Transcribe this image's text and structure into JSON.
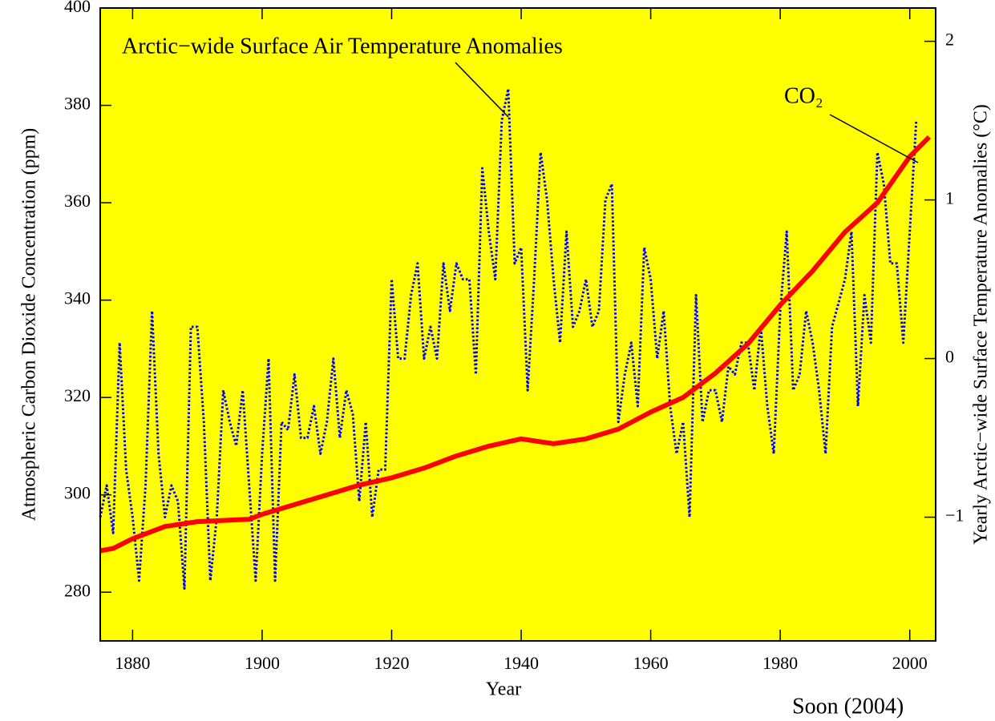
{
  "chart_data": {
    "type": "line",
    "x_label": "Year",
    "y_label": "Atmospheric Carbon Dioxide Concentration (ppm)",
    "y2_label": "Yearly Arctic−wide Surface Temperature Anomalies (°C)",
    "annotations": [
      "Arctic−wide Surface Air Temperature Anomalies",
      "CO₂",
      "Soon (2004)"
    ],
    "xlim": [
      1875,
      2004
    ],
    "xticks": [
      1880,
      1900,
      1920,
      1940,
      1960,
      1980,
      2000
    ],
    "ylim": [
      270,
      400
    ],
    "yticks": [
      280,
      300,
      320,
      340,
      360,
      380,
      400
    ],
    "y2lim": [
      -1.78,
      2.21
    ],
    "y2ticks": [
      {
        "value": -1,
        "label": "−1"
      },
      0,
      1,
      2
    ],
    "background": "#ffff00",
    "series": [
      {
        "name": "CO₂",
        "color": "#ff0000",
        "axis": "y",
        "x": [
          1875,
          1877,
          1880,
          1885,
          1890,
          1898,
          1900,
          1905,
          1910,
          1915,
          1920,
          1925,
          1930,
          1935,
          1940,
          1945,
          1950,
          1955,
          1960,
          1965,
          1970,
          1975,
          1980,
          1985,
          1990,
          1995,
          2000,
          2003
        ],
        "values": [
          288.5,
          289,
          291,
          293.5,
          294.5,
          295,
          296,
          298,
          300,
          302,
          303.5,
          305.5,
          308,
          310,
          311.5,
          310.5,
          311.5,
          313.5,
          317,
          320,
          325,
          331,
          339,
          346,
          354,
          360,
          369.5,
          373.5
        ]
      },
      {
        "name": "Arctic−wide Surface Air Temperature Anomalies",
        "color": "#0000ff",
        "axis": "y2",
        "x": [
          1875,
          1876,
          1877,
          1878,
          1879,
          1880,
          1881,
          1882,
          1883,
          1884,
          1885,
          1886,
          1887,
          1888,
          1889,
          1890,
          1891,
          1892,
          1893,
          1894,
          1895,
          1896,
          1897,
          1898,
          1899,
          1900,
          1901,
          1902,
          1903,
          1904,
          1905,
          1906,
          1907,
          1908,
          1909,
          1910,
          1911,
          1912,
          1913,
          1914,
          1915,
          1916,
          1917,
          1918,
          1919,
          1920,
          1921,
          1922,
          1923,
          1924,
          1925,
          1926,
          1927,
          1928,
          1929,
          1930,
          1931,
          1932,
          1933,
          1934,
          1935,
          1936,
          1937,
          1938,
          1939,
          1940,
          1941,
          1942,
          1943,
          1944,
          1945,
          1946,
          1947,
          1948,
          1949,
          1950,
          1951,
          1952,
          1953,
          1954,
          1955,
          1956,
          1957,
          1958,
          1959,
          1960,
          1961,
          1962,
          1963,
          1964,
          1965,
          1966,
          1967,
          1968,
          1969,
          1970,
          1971,
          1972,
          1973,
          1974,
          1975,
          1976,
          1977,
          1978,
          1979,
          1980,
          1981,
          1982,
          1983,
          1984,
          1985,
          1986,
          1987,
          1988,
          1989,
          1990,
          1991,
          1992,
          1993,
          1994,
          1995,
          1996,
          1997,
          1998,
          1999,
          2000,
          2001
        ],
        "values": [
          -1.0,
          -0.8,
          -1.1,
          0.1,
          -0.7,
          -1.0,
          -1.4,
          -0.8,
          0.3,
          -0.6,
          -1.0,
          -0.8,
          -0.9,
          -1.45,
          0.2,
          0.2,
          -0.4,
          -1.4,
          -1.0,
          -0.2,
          -0.4,
          -0.55,
          -0.2,
          -0.8,
          -1.4,
          -0.6,
          0.0,
          -1.4,
          -0.4,
          -0.45,
          -0.1,
          -0.5,
          -0.5,
          -0.3,
          -0.6,
          -0.4,
          0.0,
          -0.5,
          -0.2,
          -0.35,
          -0.9,
          -0.4,
          -1.0,
          -0.7,
          -0.7,
          0.5,
          0.0,
          0.0,
          0.4,
          0.6,
          0.0,
          0.2,
          0.0,
          0.6,
          0.3,
          0.6,
          0.5,
          0.5,
          -0.1,
          1.2,
          0.8,
          0.5,
          1.5,
          1.7,
          0.6,
          0.7,
          -0.2,
          0.5,
          1.3,
          1.0,
          0.5,
          0.1,
          0.8,
          0.2,
          0.3,
          0.5,
          0.2,
          0.3,
          1.0,
          1.1,
          -0.4,
          -0.1,
          0.1,
          -0.3,
          0.7,
          0.5,
          0.0,
          0.3,
          -0.3,
          -0.6,
          -0.4,
          -1.0,
          0.4,
          -0.4,
          -0.2,
          -0.2,
          -0.4,
          -0.05,
          -0.1,
          0.1,
          0.1,
          -0.2,
          0.2,
          -0.3,
          -0.6,
          0.3,
          0.8,
          -0.2,
          -0.1,
          0.3,
          0.1,
          -0.2,
          -0.6,
          0.2,
          0.35,
          0.5,
          0.8,
          -0.3,
          0.4,
          0.1,
          1.3,
          1.1,
          0.6,
          0.6,
          0.1,
          0.8,
          1.5
        ]
      }
    ]
  }
}
